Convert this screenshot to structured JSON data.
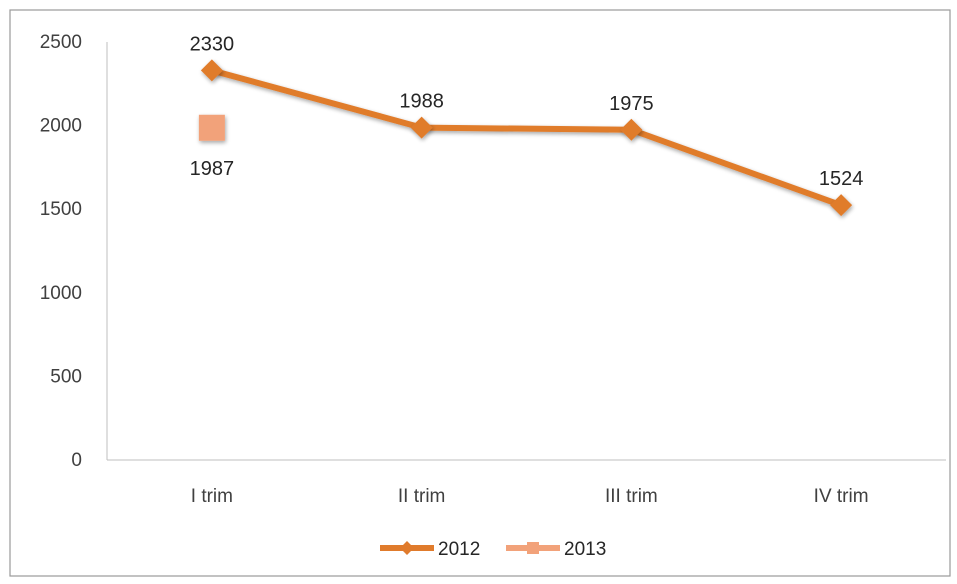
{
  "chart_data": {
    "type": "line",
    "categories": [
      "I trim",
      "II trim",
      "III trim",
      "IV trim"
    ],
    "ylim": [
      0,
      2500
    ],
    "yticks": [
      0,
      500,
      1000,
      1500,
      2000,
      2500
    ],
    "ytick_labels": [
      "0",
      "500",
      "1000",
      "1500",
      "2000",
      "2500"
    ],
    "grid": false,
    "legend_position": "bottom",
    "series": [
      {
        "name": "2012",
        "values": [
          2330,
          1988,
          1975,
          1524
        ],
        "labels": [
          "2330",
          "1988",
          "1975",
          "1524"
        ],
        "color": "#E07B2C",
        "marker": "diamond"
      },
      {
        "name": "2013",
        "values": [
          1987,
          null,
          null,
          null
        ],
        "labels": [
          "1987",
          null,
          null,
          null
        ],
        "color": "#F2A27A",
        "marker": "square"
      }
    ]
  }
}
